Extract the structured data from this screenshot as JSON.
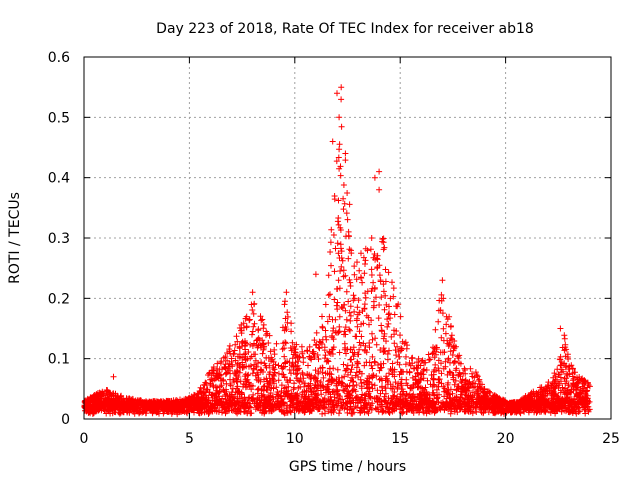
{
  "chart_data": {
    "type": "scatter",
    "title": "Day 223 of 2018, Rate Of TEC Index for receiver ab18",
    "xlabel": "GPS time / hours",
    "ylabel": "ROTI / TECUs",
    "xlim": [
      0,
      25
    ],
    "ylim": [
      0,
      0.6
    ],
    "x_ticks": [
      0,
      5,
      10,
      15,
      20,
      25
    ],
    "x_tick_labels": [
      "0",
      "5",
      "10",
      "15",
      "20",
      "25"
    ],
    "y_ticks": [
      0,
      0.1,
      0.2,
      0.3,
      0.4,
      0.5,
      0.6
    ],
    "y_tick_labels": [
      "0",
      "0.1",
      "0.2",
      "0.3",
      "0.4",
      "0.5",
      "0.6"
    ],
    "grid": true,
    "marker": "+",
    "series_color": "#ff0000",
    "envelope": {
      "description": "approximate upper envelope of ROTI values per hour",
      "x": [
        0,
        1,
        2,
        3,
        4,
        5,
        5.5,
        6,
        6.5,
        7,
        7.5,
        8,
        8.5,
        9,
        9.5,
        10,
        10.5,
        11,
        11.5,
        12,
        12.2,
        12.5,
        13,
        13.5,
        14,
        14.5,
        15,
        15.5,
        16,
        16.5,
        17,
        17.5,
        18,
        18.5,
        19,
        19.5,
        20,
        20.5,
        21,
        21.5,
        22,
        22.5,
        22.8,
        23,
        23.5,
        24
      ],
      "y": [
        0.03,
        0.05,
        0.035,
        0.03,
        0.03,
        0.035,
        0.05,
        0.08,
        0.1,
        0.13,
        0.16,
        0.2,
        0.17,
        0.12,
        0.2,
        0.14,
        0.11,
        0.14,
        0.2,
        0.45,
        0.55,
        0.4,
        0.28,
        0.3,
        0.4,
        0.25,
        0.18,
        0.11,
        0.1,
        0.12,
        0.23,
        0.14,
        0.1,
        0.09,
        0.05,
        0.04,
        0.03,
        0.025,
        0.04,
        0.05,
        0.06,
        0.09,
        0.15,
        0.1,
        0.07,
        0.06
      ]
    },
    "notable_points": [
      {
        "x": 12.2,
        "y": 0.55
      },
      {
        "x": 12.0,
        "y": 0.54
      },
      {
        "x": 12.1,
        "y": 0.5
      },
      {
        "x": 11.8,
        "y": 0.46
      },
      {
        "x": 12.4,
        "y": 0.44
      },
      {
        "x": 13.8,
        "y": 0.4
      },
      {
        "x": 14.0,
        "y": 0.41
      },
      {
        "x": 14.0,
        "y": 0.38
      },
      {
        "x": 17.0,
        "y": 0.23
      },
      {
        "x": 22.6,
        "y": 0.15
      },
      {
        "x": 11.0,
        "y": 0.24
      },
      {
        "x": 8.0,
        "y": 0.21
      },
      {
        "x": 9.6,
        "y": 0.21
      },
      {
        "x": 1.4,
        "y": 0.07
      }
    ]
  }
}
